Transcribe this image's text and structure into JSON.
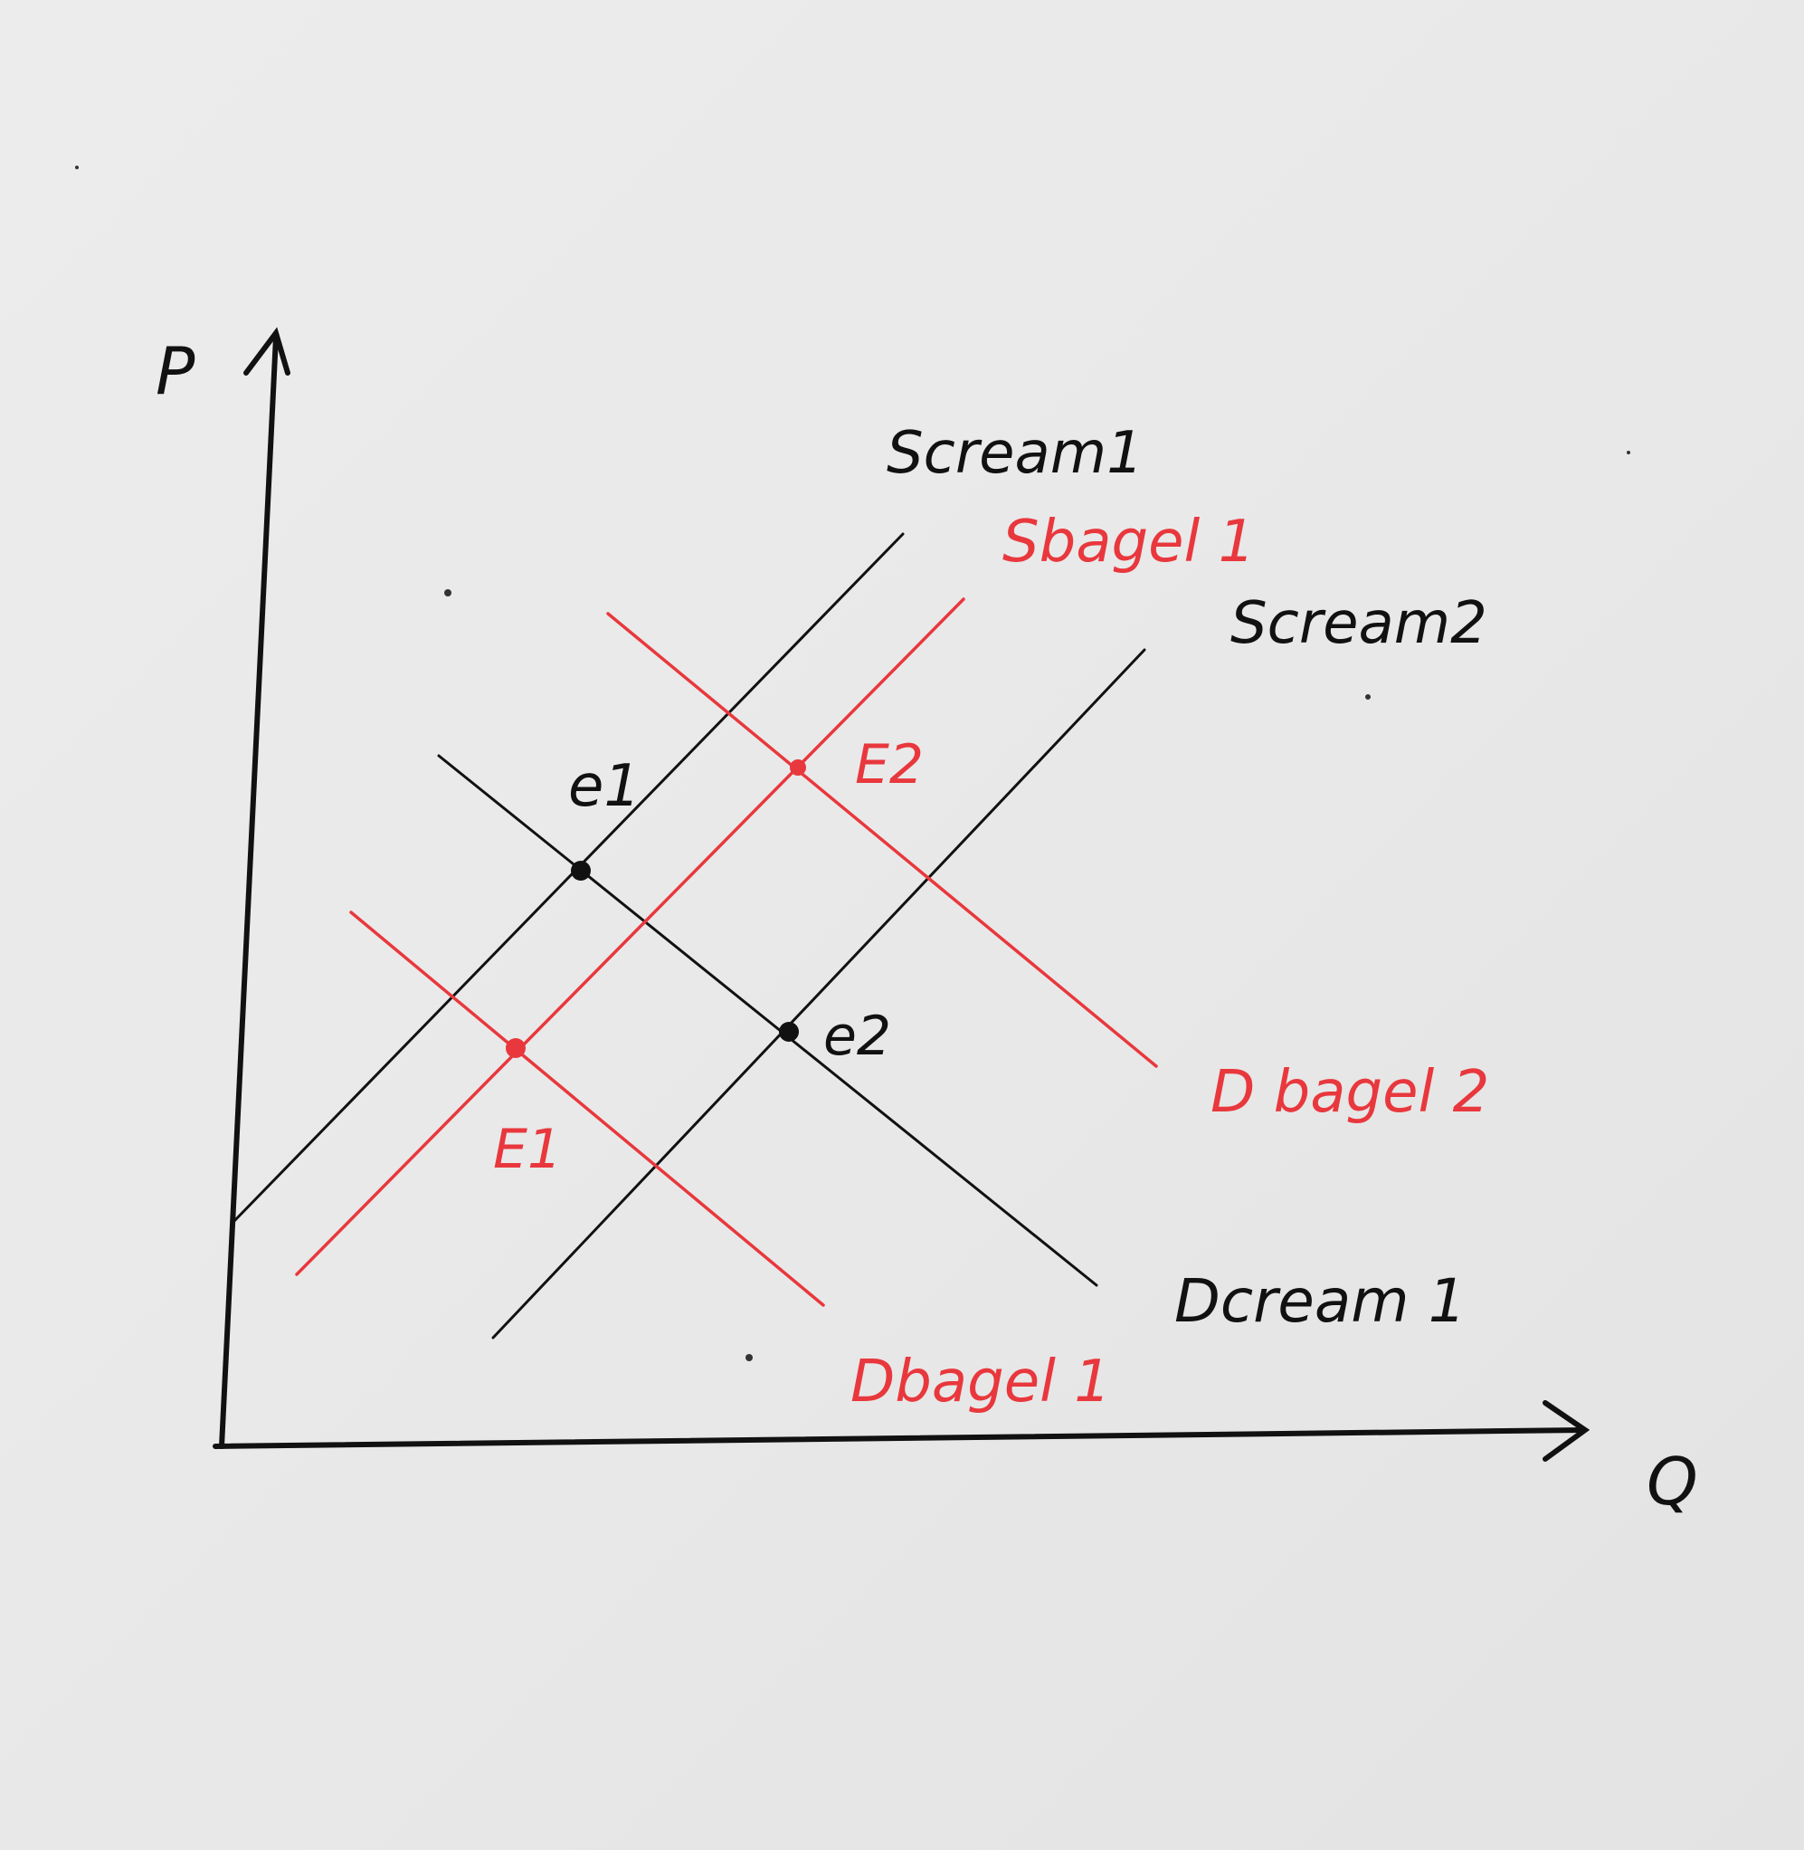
{
  "axes": {
    "y_label": "P",
    "x_label": "Q"
  },
  "labels": {
    "s_cream_1": "Scream1",
    "s_bagel_1": "Sbagel 1",
    "s_cream_2": "Scream2",
    "d_bagel_2": "D bagel 2",
    "d_cream_1": "Dcream 1",
    "d_bagel_1": "Dbagel 1",
    "point_e1": "e1",
    "point_e2": "e2",
    "point_E1": "E1",
    "point_E2": "E2"
  },
  "colors": {
    "ink": "#111111",
    "red": "#e8383d"
  }
}
